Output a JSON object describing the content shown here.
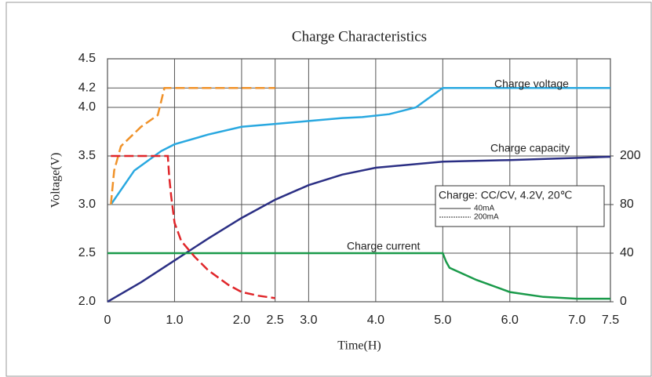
{
  "chart_data": {
    "type": "line",
    "title": "Charge Characteristics",
    "xlabel": "Time(H)",
    "ylabel": "Voltage(V)",
    "xlim": [
      0,
      7.5
    ],
    "xticks": [
      0,
      {
        "value": 1,
        "label": "1.0"
      },
      {
        "value": 2,
        "label": "2.0"
      },
      2.5,
      {
        "value": 3,
        "label": "3.0"
      },
      {
        "value": 4,
        "label": "4.0"
      },
      {
        "value": 5,
        "label": "5.0"
      },
      {
        "value": 6,
        "label": "6.0"
      },
      {
        "value": 7,
        "label": "7.0"
      },
      7.5
    ],
    "ylim": [
      2.0,
      4.5
    ],
    "yticks": [
      {
        "value": 2,
        "label": "2.0"
      },
      2.5,
      {
        "value": 3,
        "label": "3.0"
      },
      3.5,
      {
        "value": 4,
        "label": "4.0"
      },
      4.2,
      4.5
    ],
    "y2ticks": [
      0,
      40,
      80,
      200
    ],
    "grid": true,
    "annotations": [
      "Charge voltage",
      "Charge capacity",
      "Charge current"
    ],
    "legend": {
      "title": "Charge: CC/CV, 4.2V, 20℃",
      "entries": [
        {
          "label": "40mA",
          "dashed": false
        },
        {
          "label": "200mA",
          "dashed": true
        }
      ]
    },
    "series": [
      {
        "color": "#29a8e0",
        "dashed": false,
        "x": [
          0.05,
          0.4,
          0.8,
          1.0,
          1.5,
          2.0,
          2.5,
          3.0,
          3.5,
          3.8,
          4.2,
          4.6,
          5.0,
          7.5
        ],
        "values": [
          3.0,
          3.35,
          3.55,
          3.62,
          3.72,
          3.8,
          3.83,
          3.86,
          3.89,
          3.9,
          3.93,
          4.0,
          4.2,
          4.2
        ]
      },
      {
        "color": "#f0922a",
        "dashed": true,
        "x": [
          0.05,
          0.1,
          0.2,
          0.5,
          0.75,
          0.85,
          2.5
        ],
        "values": [
          3.0,
          3.35,
          3.6,
          3.8,
          3.92,
          4.2,
          4.2
        ]
      },
      {
        "color": "#2b2f84",
        "dashed": false,
        "axis": "y2",
        "x": [
          0,
          0.5,
          1.0,
          1.5,
          2.0,
          2.5,
          3.0,
          3.5,
          4.0,
          5.0,
          6.0,
          7.5
        ],
        "values": [
          0,
          16,
          34,
          52,
          69,
          92,
          128,
          154,
          171,
          186,
          190,
          198
        ]
      },
      {
        "color": "#1a9a4a",
        "dashed": false,
        "axis": "y2",
        "x": [
          0,
          5.0,
          5.05,
          5.1,
          5.5,
          6.0,
          6.5,
          7.0,
          7.5
        ],
        "values": [
          40,
          40,
          33,
          28,
          18,
          8,
          4,
          2.5,
          2.5
        ]
      },
      {
        "color": "#e0262a",
        "dashed": true,
        "axis": "y2",
        "x": [
          0.05,
          0.9,
          0.92,
          0.95,
          1.0,
          1.1,
          1.3,
          1.5,
          1.8,
          2.0,
          2.25,
          2.5
        ],
        "values": [
          200,
          200,
          150,
          100,
          65,
          50,
          37,
          26,
          14,
          8,
          5,
          3
        ]
      }
    ]
  }
}
